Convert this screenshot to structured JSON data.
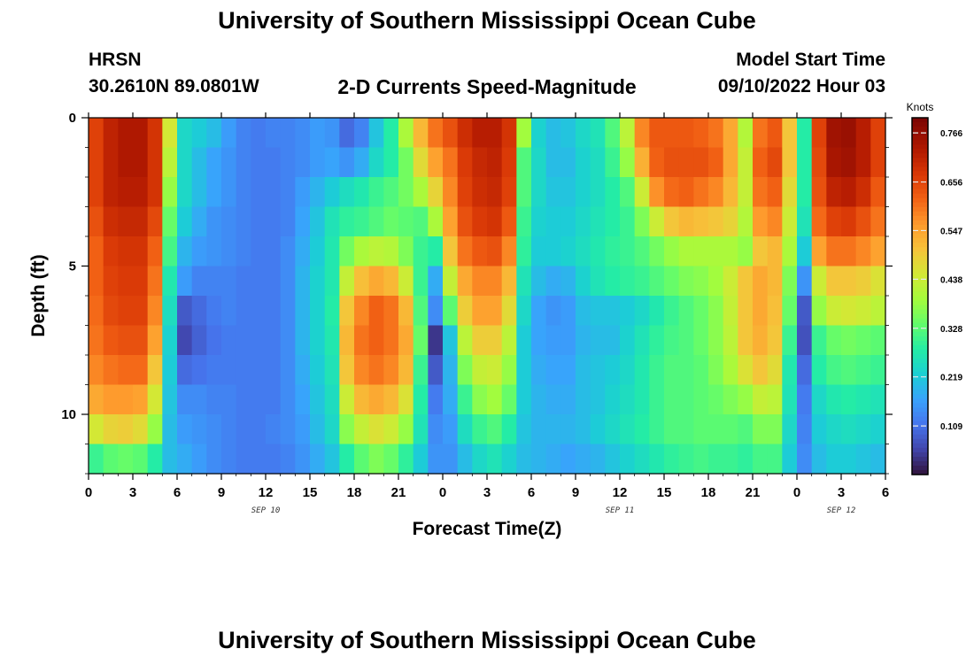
{
  "page_title": "University of Southern Mississippi Ocean Cube",
  "station": {
    "name": "HRSN",
    "coords": "30.2610N  89.0801W"
  },
  "model": {
    "label": "Model Start Time",
    "start": "09/10/2022 Hour 03"
  },
  "bottom_title": "University of Southern Mississippi Ocean Cube",
  "chart_data": {
    "type": "heatmap",
    "title": "2-D Currents Speed-Magnitude",
    "xlabel": "Forecast Time(Z)",
    "ylabel": "Depth (ft)",
    "x_ticks": [
      "0",
      "3",
      "6",
      "9",
      "12",
      "15",
      "18",
      "21",
      "0",
      "3",
      "6",
      "9",
      "12",
      "15",
      "18",
      "21",
      "0",
      "3",
      "6"
    ],
    "x_hours_range": [
      0,
      54
    ],
    "date_labels": [
      {
        "text": "SEP 10",
        "hour": 12
      },
      {
        "text": "SEP 11",
        "hour": 36
      },
      {
        "text": "SEP 12",
        "hour": 51
      }
    ],
    "y_ticks": [
      "0",
      "5",
      "10"
    ],
    "ylim": [
      0,
      12
    ],
    "depth_rows": [
      0,
      1,
      2,
      3,
      4,
      5,
      6,
      7,
      8,
      9,
      10,
      11
    ],
    "hours": [
      0,
      1,
      2,
      3,
      4,
      5,
      6,
      7,
      8,
      9,
      10,
      11,
      12,
      13,
      14,
      15,
      16,
      17,
      18,
      19,
      20,
      21,
      22,
      23,
      24,
      25,
      26,
      27,
      28,
      29,
      30,
      31,
      32,
      33,
      34,
      35,
      36,
      37,
      38,
      39,
      40,
      41,
      42,
      43,
      44,
      45,
      46,
      47,
      48,
      49,
      50,
      51,
      52,
      53
    ],
    "colorbar": {
      "label": "Knots",
      "min": 0.0,
      "max": 0.8,
      "ticks": [
        "0.766",
        "0.656",
        "0.547",
        "0.438",
        "0.328",
        "0.219",
        "0.109"
      ],
      "tick_values": [
        0.766,
        0.656,
        0.547,
        0.438,
        0.328,
        0.219,
        0.109
      ]
    },
    "values": [
      [
        0.66,
        0.71,
        0.73,
        0.73,
        0.68,
        0.45,
        0.24,
        0.22,
        0.2,
        0.16,
        0.13,
        0.12,
        0.13,
        0.13,
        0.14,
        0.16,
        0.15,
        0.1,
        0.13,
        0.21,
        0.28,
        0.4,
        0.52,
        0.6,
        0.64,
        0.69,
        0.72,
        0.72,
        0.68,
        0.39,
        0.23,
        0.2,
        0.21,
        0.24,
        0.26,
        0.32,
        0.42,
        0.58,
        0.63,
        0.63,
        0.63,
        0.62,
        0.6,
        0.54,
        0.41,
        0.6,
        0.63,
        0.5,
        0.28,
        0.66,
        0.75,
        0.76,
        0.72,
        0.66
      ],
      [
        0.66,
        0.71,
        0.73,
        0.73,
        0.68,
        0.42,
        0.24,
        0.2,
        0.17,
        0.15,
        0.13,
        0.12,
        0.12,
        0.13,
        0.14,
        0.16,
        0.17,
        0.15,
        0.18,
        0.24,
        0.28,
        0.35,
        0.47,
        0.55,
        0.6,
        0.67,
        0.7,
        0.71,
        0.67,
        0.32,
        0.24,
        0.2,
        0.2,
        0.23,
        0.25,
        0.3,
        0.38,
        0.53,
        0.62,
        0.64,
        0.64,
        0.64,
        0.62,
        0.54,
        0.43,
        0.62,
        0.65,
        0.5,
        0.28,
        0.65,
        0.74,
        0.75,
        0.72,
        0.66
      ],
      [
        0.66,
        0.71,
        0.72,
        0.72,
        0.68,
        0.38,
        0.24,
        0.2,
        0.17,
        0.15,
        0.13,
        0.12,
        0.12,
        0.13,
        0.16,
        0.19,
        0.22,
        0.25,
        0.27,
        0.3,
        0.32,
        0.35,
        0.4,
        0.48,
        0.58,
        0.66,
        0.69,
        0.7,
        0.66,
        0.32,
        0.24,
        0.21,
        0.21,
        0.23,
        0.25,
        0.28,
        0.32,
        0.44,
        0.57,
        0.61,
        0.62,
        0.6,
        0.58,
        0.52,
        0.43,
        0.6,
        0.62,
        0.47,
        0.28,
        0.64,
        0.71,
        0.72,
        0.69,
        0.63
      ],
      [
        0.64,
        0.69,
        0.7,
        0.7,
        0.65,
        0.34,
        0.22,
        0.18,
        0.15,
        0.14,
        0.13,
        0.12,
        0.12,
        0.13,
        0.17,
        0.21,
        0.26,
        0.29,
        0.3,
        0.32,
        0.34,
        0.33,
        0.32,
        0.4,
        0.55,
        0.64,
        0.67,
        0.68,
        0.63,
        0.3,
        0.23,
        0.22,
        0.22,
        0.24,
        0.26,
        0.28,
        0.3,
        0.36,
        0.44,
        0.5,
        0.52,
        0.51,
        0.5,
        0.48,
        0.41,
        0.56,
        0.58,
        0.44,
        0.26,
        0.61,
        0.66,
        0.67,
        0.64,
        0.6
      ],
      [
        0.62,
        0.67,
        0.68,
        0.68,
        0.62,
        0.31,
        0.19,
        0.16,
        0.15,
        0.14,
        0.13,
        0.12,
        0.12,
        0.14,
        0.18,
        0.22,
        0.27,
        0.35,
        0.4,
        0.42,
        0.41,
        0.36,
        0.3,
        0.28,
        0.5,
        0.6,
        0.63,
        0.64,
        0.58,
        0.29,
        0.22,
        0.22,
        0.23,
        0.25,
        0.27,
        0.29,
        0.3,
        0.32,
        0.35,
        0.38,
        0.4,
        0.4,
        0.4,
        0.4,
        0.38,
        0.5,
        0.52,
        0.4,
        0.22,
        0.55,
        0.6,
        0.6,
        0.58,
        0.55
      ],
      [
        0.62,
        0.66,
        0.67,
        0.67,
        0.6,
        0.27,
        0.16,
        0.13,
        0.13,
        0.13,
        0.12,
        0.12,
        0.12,
        0.14,
        0.19,
        0.23,
        0.27,
        0.43,
        0.51,
        0.54,
        0.52,
        0.44,
        0.3,
        0.18,
        0.43,
        0.54,
        0.58,
        0.58,
        0.52,
        0.26,
        0.2,
        0.18,
        0.19,
        0.23,
        0.26,
        0.28,
        0.29,
        0.3,
        0.32,
        0.34,
        0.36,
        0.37,
        0.39,
        0.44,
        0.5,
        0.54,
        0.52,
        0.36,
        0.15,
        0.44,
        0.5,
        0.5,
        0.49,
        0.46
      ],
      [
        0.61,
        0.65,
        0.66,
        0.66,
        0.58,
        0.25,
        0.08,
        0.1,
        0.12,
        0.13,
        0.12,
        0.12,
        0.12,
        0.14,
        0.19,
        0.23,
        0.28,
        0.5,
        0.58,
        0.62,
        0.6,
        0.52,
        0.32,
        0.14,
        0.33,
        0.49,
        0.55,
        0.55,
        0.47,
        0.24,
        0.17,
        0.15,
        0.16,
        0.2,
        0.21,
        0.21,
        0.22,
        0.24,
        0.27,
        0.3,
        0.32,
        0.34,
        0.37,
        0.43,
        0.5,
        0.54,
        0.51,
        0.34,
        0.08,
        0.38,
        0.44,
        0.45,
        0.44,
        0.42
      ],
      [
        0.6,
        0.63,
        0.64,
        0.64,
        0.55,
        0.23,
        0.06,
        0.09,
        0.11,
        0.12,
        0.12,
        0.12,
        0.12,
        0.14,
        0.19,
        0.23,
        0.27,
        0.52,
        0.6,
        0.62,
        0.6,
        0.54,
        0.34,
        0.04,
        0.21,
        0.42,
        0.49,
        0.49,
        0.42,
        0.22,
        0.17,
        0.16,
        0.16,
        0.19,
        0.2,
        0.2,
        0.23,
        0.26,
        0.29,
        0.31,
        0.32,
        0.34,
        0.37,
        0.42,
        0.5,
        0.53,
        0.5,
        0.3,
        0.07,
        0.3,
        0.34,
        0.35,
        0.34,
        0.33
      ],
      [
        0.58,
        0.6,
        0.61,
        0.61,
        0.5,
        0.22,
        0.1,
        0.11,
        0.12,
        0.12,
        0.12,
        0.12,
        0.12,
        0.14,
        0.18,
        0.22,
        0.26,
        0.5,
        0.58,
        0.6,
        0.58,
        0.52,
        0.3,
        0.08,
        0.19,
        0.36,
        0.43,
        0.44,
        0.38,
        0.22,
        0.18,
        0.17,
        0.17,
        0.2,
        0.21,
        0.22,
        0.24,
        0.27,
        0.3,
        0.32,
        0.32,
        0.33,
        0.36,
        0.4,
        0.46,
        0.5,
        0.47,
        0.27,
        0.1,
        0.28,
        0.31,
        0.32,
        0.31,
        0.3
      ],
      [
        0.54,
        0.56,
        0.56,
        0.55,
        0.45,
        0.21,
        0.14,
        0.14,
        0.13,
        0.13,
        0.12,
        0.12,
        0.12,
        0.14,
        0.17,
        0.21,
        0.25,
        0.44,
        0.52,
        0.54,
        0.52,
        0.46,
        0.28,
        0.12,
        0.18,
        0.3,
        0.37,
        0.39,
        0.34,
        0.22,
        0.19,
        0.18,
        0.18,
        0.2,
        0.21,
        0.23,
        0.25,
        0.27,
        0.3,
        0.32,
        0.32,
        0.33,
        0.34,
        0.36,
        0.38,
        0.43,
        0.42,
        0.26,
        0.12,
        0.24,
        0.27,
        0.28,
        0.27,
        0.26
      ],
      [
        0.45,
        0.48,
        0.49,
        0.47,
        0.38,
        0.2,
        0.16,
        0.15,
        0.14,
        0.13,
        0.12,
        0.12,
        0.13,
        0.14,
        0.16,
        0.2,
        0.24,
        0.37,
        0.43,
        0.46,
        0.44,
        0.38,
        0.26,
        0.14,
        0.16,
        0.25,
        0.3,
        0.32,
        0.28,
        0.21,
        0.19,
        0.19,
        0.19,
        0.2,
        0.22,
        0.24,
        0.26,
        0.28,
        0.3,
        0.32,
        0.32,
        0.33,
        0.33,
        0.33,
        0.32,
        0.36,
        0.36,
        0.24,
        0.13,
        0.22,
        0.24,
        0.25,
        0.24,
        0.23
      ],
      [
        0.3,
        0.33,
        0.34,
        0.33,
        0.28,
        0.2,
        0.18,
        0.16,
        0.14,
        0.13,
        0.12,
        0.12,
        0.12,
        0.13,
        0.15,
        0.18,
        0.21,
        0.28,
        0.33,
        0.36,
        0.34,
        0.29,
        0.22,
        0.15,
        0.15,
        0.2,
        0.24,
        0.26,
        0.23,
        0.2,
        0.19,
        0.18,
        0.17,
        0.18,
        0.19,
        0.21,
        0.23,
        0.25,
        0.27,
        0.29,
        0.3,
        0.31,
        0.3,
        0.3,
        0.29,
        0.31,
        0.31,
        0.22,
        0.14,
        0.2,
        0.22,
        0.22,
        0.21,
        0.2
      ]
    ]
  }
}
